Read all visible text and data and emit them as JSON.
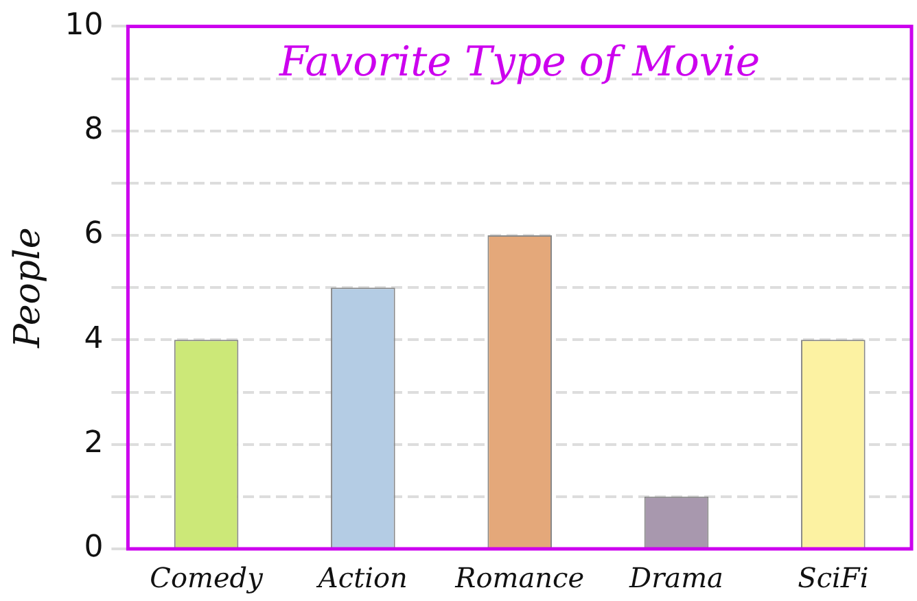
{
  "chart_data": {
    "type": "bar",
    "title": "Favorite Type of Movie",
    "ylabel": "People",
    "categories": [
      "Comedy",
      "Action",
      "Romance",
      "Drama",
      "SciFi"
    ],
    "values": [
      4,
      5,
      6,
      1,
      4
    ],
    "colors": [
      "#cce878",
      "#b4cce4",
      "#e4a87a",
      "#a898ae",
      "#fcf2a2"
    ],
    "ylim": [
      0,
      10
    ],
    "yticks": [
      0,
      {
        "value": 1,
        "label": null
      },
      2,
      {
        "value": 3,
        "label": null
      },
      4,
      {
        "value": 5,
        "label": null
      },
      6,
      {
        "value": 7,
        "label": null
      },
      8,
      {
        "value": 9,
        "label": null
      },
      10
    ],
    "grid": "y"
  }
}
